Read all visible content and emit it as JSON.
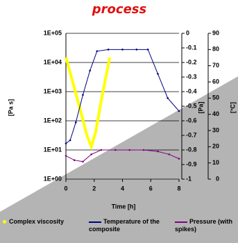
{
  "chart_data": {
    "type": "line",
    "title": "process",
    "xlabel": "Time [h]",
    "ylabel": "[Pa s]",
    "y2label": "[Pa]",
    "y3label": "[°C]",
    "xlim": [
      0,
      8
    ],
    "xticks": [
      0,
      2,
      4,
      6,
      8
    ],
    "ylim": [
      1,
      100000
    ],
    "log_y": true,
    "yticks": [
      {
        "value": 1,
        "label": "1E+00"
      },
      {
        "value": 10,
        "label": "1E+01"
      },
      {
        "value": 100,
        "label": "1E+02"
      },
      {
        "value": 1000,
        "label": "1E+03"
      },
      {
        "value": 10000,
        "label": "1E+04"
      },
      {
        "value": 100000,
        "label": "1E+05"
      }
    ],
    "y2lim": [
      -1,
      0
    ],
    "y2ticks": [
      0,
      -0.1,
      -0.2,
      -0.3,
      -0.4,
      -0.5,
      -0.6,
      -0.7,
      -0.8,
      -0.9,
      -1
    ],
    "y3lim": [
      0,
      90
    ],
    "y3ticks": [
      0,
      10,
      20,
      30,
      40,
      50,
      60,
      70,
      80,
      90
    ],
    "grid": true,
    "series": [
      {
        "name": "Complex viscosity",
        "color": "#ffff00",
        "axis": "y",
        "x": [
          0,
          0.5,
          1,
          1.5,
          1.8,
          2.1,
          2.5,
          3.1
        ],
        "values": [
          15000,
          2000,
          250,
          30,
          13,
          40,
          500,
          15000
        ]
      },
      {
        "name": "Temperature of the composite",
        "color": "#000080",
        "axis": "y3",
        "x": [
          0,
          0.3,
          0.7,
          1.2,
          1.7,
          2.2,
          3,
          4,
          5,
          5.8,
          6.5,
          7.2,
          8
        ],
        "values": [
          22,
          24,
          35,
          52,
          67,
          79,
          80,
          80,
          80,
          80,
          65,
          50,
          42
        ]
      },
      {
        "name": "Pressure (with spikes)",
        "color": "#800080",
        "axis": "y2",
        "x": [
          0,
          0.6,
          1.2,
          1.8,
          2.5,
          3.5,
          4.5,
          5.5,
          6.5,
          7.3,
          8
        ],
        "values": [
          -0.84,
          -0.87,
          -0.88,
          -0.83,
          -0.8,
          -0.8,
          -0.8,
          -0.8,
          -0.81,
          -0.83,
          -0.86
        ]
      }
    ]
  }
}
